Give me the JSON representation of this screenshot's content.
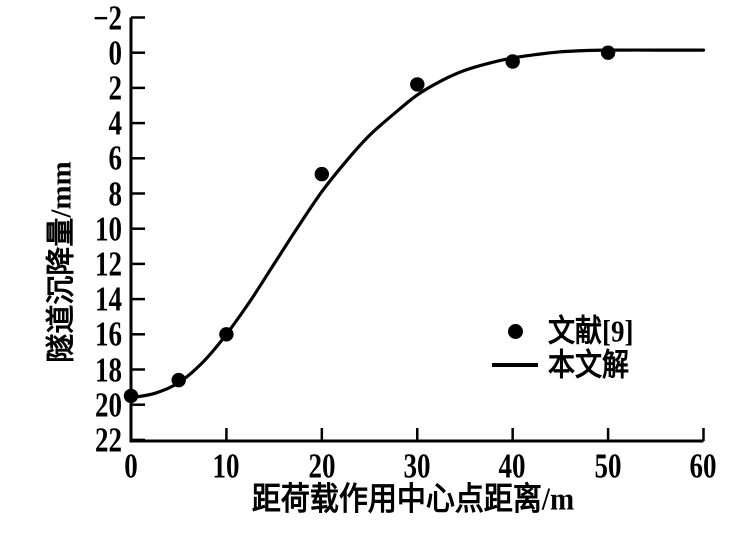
{
  "figure": {
    "background": "#ffffff",
    "ink": "#000000"
  },
  "chart_data": {
    "type": "line",
    "title": "",
    "xlabel": "距荷载作用中心点距离/m",
    "ylabel": "隧道沉降量/mm",
    "x_ticks": [
      "0",
      "10",
      "20",
      "30",
      "40",
      "50",
      "60"
    ],
    "y_ticks": [
      "−2",
      "0",
      "2",
      "4",
      "6",
      "8",
      "10",
      "12",
      "14",
      "16",
      "18",
      "20",
      "22"
    ],
    "xlim": [
      0,
      60
    ],
    "ylim": [
      -2,
      22
    ],
    "y_axis_inverted": true,
    "grid": false,
    "legend": {
      "position": "inside-right",
      "entries": [
        {
          "label": "文献[9]",
          "marker": "dot"
        },
        {
          "label": "本文解",
          "marker": "line"
        }
      ]
    },
    "series": [
      {
        "name": "文献[9]",
        "type": "scatter",
        "points": [
          [
            0,
            19.5
          ],
          [
            5,
            18.6
          ],
          [
            10,
            16.0
          ],
          [
            20,
            6.9
          ],
          [
            30,
            1.8
          ],
          [
            40,
            0.5
          ],
          [
            50,
            0.0
          ]
        ]
      },
      {
        "name": "本文解",
        "type": "line",
        "points": [
          [
            0,
            19.6
          ],
          [
            2.5,
            19.35
          ],
          [
            5,
            18.75
          ],
          [
            7.5,
            17.6
          ],
          [
            10,
            16.0
          ],
          [
            12.5,
            14.1
          ],
          [
            15,
            12.0
          ],
          [
            17.5,
            9.9
          ],
          [
            20,
            7.9
          ],
          [
            22.5,
            6.2
          ],
          [
            25,
            4.7
          ],
          [
            27.5,
            3.5
          ],
          [
            30,
            2.4
          ],
          [
            32.5,
            1.6
          ],
          [
            35,
            1.0
          ],
          [
            37.5,
            0.6
          ],
          [
            40,
            0.3
          ],
          [
            42.5,
            0.1
          ],
          [
            45,
            -0.05
          ],
          [
            47.5,
            -0.12
          ],
          [
            50,
            -0.15
          ],
          [
            55,
            -0.15
          ],
          [
            60,
            -0.15
          ]
        ]
      }
    ]
  }
}
